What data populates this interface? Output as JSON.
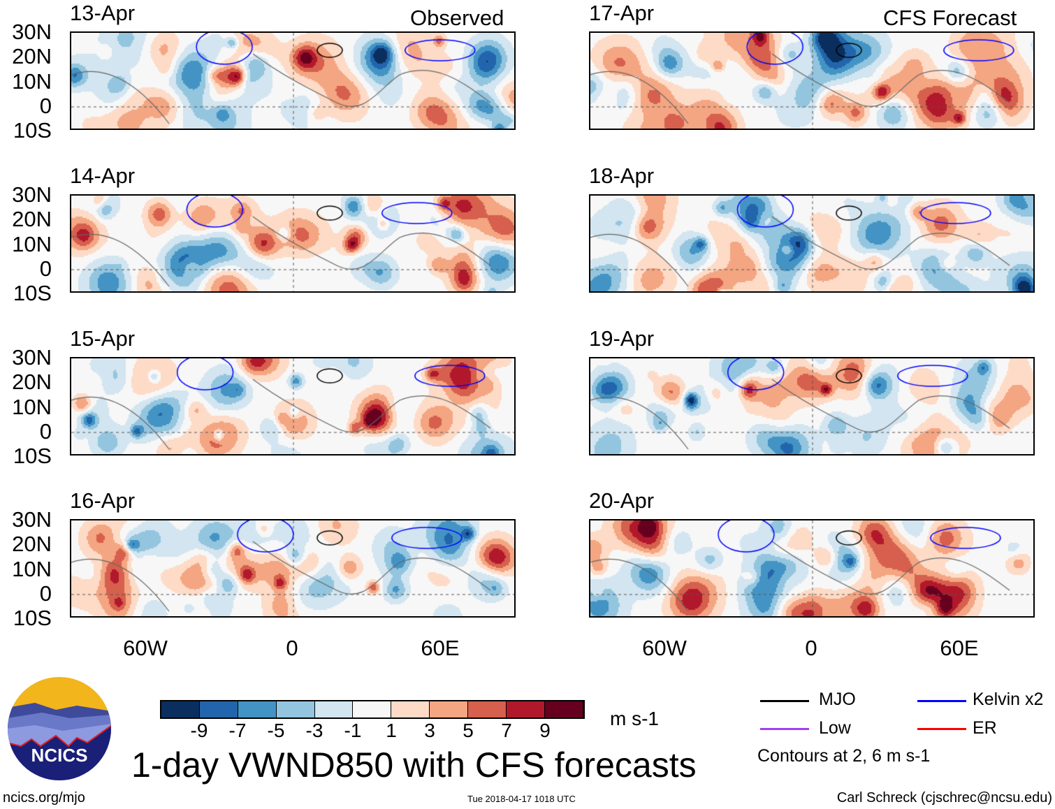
{
  "title": "1-day VWND850 with CFS forecasts",
  "observed_label": "Observed",
  "forecast_label": "CFS Forecast",
  "panels_left": [
    {
      "date": "13-Apr"
    },
    {
      "date": "14-Apr"
    },
    {
      "date": "15-Apr"
    },
    {
      "date": "16-Apr"
    }
  ],
  "panels_right": [
    {
      "date": "17-Apr"
    },
    {
      "date": "18-Apr"
    },
    {
      "date": "19-Apr"
    },
    {
      "date": "20-Apr"
    }
  ],
  "lat_ticks": [
    "30N",
    "20N",
    "10N",
    "0",
    "10S"
  ],
  "lon_ticks": [
    "60W",
    "0",
    "60E"
  ],
  "colorbar": {
    "labels": [
      "-9",
      "-7",
      "-5",
      "-3",
      "-1",
      "1",
      "3",
      "5",
      "7",
      "9"
    ],
    "colors": [
      "#0a2f5e",
      "#2265ac",
      "#4394c4",
      "#93c5df",
      "#d2e5f0",
      "#f7f7f7",
      "#fddbc7",
      "#f4a582",
      "#d6604d",
      "#b2182b",
      "#67001f"
    ],
    "units": "m s-1"
  },
  "legend": {
    "items": [
      {
        "label": "MJO",
        "color": "#000000"
      },
      {
        "label": "Kelvin x2",
        "color": "#0000ff"
      },
      {
        "label": "Low",
        "color": "#a040f0"
      },
      {
        "label": "ER",
        "color": "#ff0000"
      }
    ],
    "note": "Contours at 2, 6 m s-1"
  },
  "logo_text": "NCICS",
  "footer": {
    "url": "ncics.org/mjo",
    "timestamp": "Tue 2018-04-17 1018 UTC",
    "credit": "Carl Schreck (cjschrec@ncsu.edu)"
  }
}
